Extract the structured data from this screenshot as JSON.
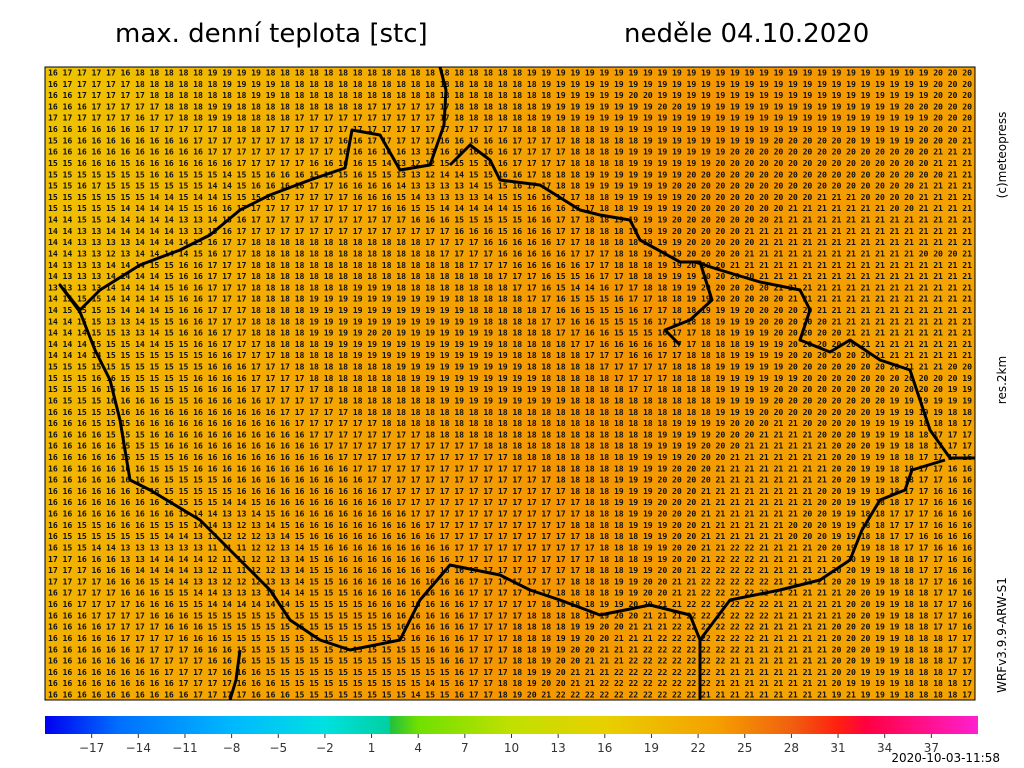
{
  "header": {
    "title": "max. denní teplota [stc]",
    "date": "neděle 04.10.2020"
  },
  "side": {
    "copyright": "(c)meteopress",
    "resolution": "res.2km",
    "model": "WRFv3.9.9-ARW-S1"
  },
  "footer": {
    "timestamp": "2020-10-03-11:58"
  },
  "colorbar": {
    "lim": [
      -20,
      40
    ],
    "ticks": [
      {
        "value": -17,
        "label": "−17"
      },
      {
        "value": -14,
        "label": "−14"
      },
      {
        "value": -11,
        "label": "−11"
      },
      {
        "value": -8,
        "label": "−8"
      },
      {
        "value": -5,
        "label": "−5"
      },
      {
        "value": -2,
        "label": "−2"
      },
      1,
      4,
      7,
      10,
      13,
      16,
      19,
      22,
      25,
      28,
      31,
      34,
      37
    ]
  },
  "grid": {
    "rows": [
      "16 17 17 17 17 16 18 18 18 18 18 19 19 19 19 18 18 18 18 18 18 18 18 18 18 18 18 18 18 18 18 18 18 19 19 19 19 19 19 19 19 19 19 19 19 19 19 19 19 19 19 19 19 19 19 19 19 19 19 19 19 20 20 20",
      "16 17 17 17 17 17 18 18 18 18 18 18 19 19 19 19 18 18 18 18 18 18 18 18 18 18 18 18 18 18 18 18 18 18 19 19 19 19 19 19 19 19 19 19 19 19 19 19 19 19 19 19 19 19 19 19 19 19 19 19 19 20 20 20",
      "16 16 17 17 17 17 17 18 18 18 18 18 18 18 19 19 18 18 18 18 18 18 18 18 18 18 18 18 18 18 18 18 18 18 18 19 19 19 19 19 20 20 19 19 19 19 19 19 19 19 19 19 19 19 19 19 19 19 19 19 19 20 20 20",
      "16 16 16 17 17 17 17 17 18 18 18 19 19 18 18 18 18 18 18 18 18 18 17 17 17 17 17 17 18 18 18 18 18 18 19 19 19 19 19 19 19 19 20 20 19 19 19 19 19 19 19 19 19 19 19 19 19 19 19 20 20 20 20 20",
      "17 17 17 17 17 17 16 17 17 18 18 19 19 18 18 18 18 17 17 17 17 17 17 17 17 17 17 17 18 18 18 18 18 18 19 19 19 19 19 19 19 19 19 19 19 19 19 19 19 19 19 19 19 19 19 19 19 19 19 19 19 20 20 20",
      "16 16 16 16 16 16 16 17 17 17 17 17 18 18 18 17 17 17 17 17 17 17 17 17 17 17 17 17 17 17 17 17 18 18 18 18 18 18 19 19 19 19 19 19 19 19 19 19 19 19 19 19 19 19 19 19 19 19 19 19 20 20 20 21",
      "15 16 16 16 16 16 16 16 16 16 17 17 17 17 17 17 17 18 17 17 16 16 17 17 17 17 17 16 16 16 16 16 17 17 17 17 18 18 18 18 18 19 19 19 19 19 19 19 19 19 20 20 20 20 20 20 19 19 19 19 20 20 20 21",
      "16 16 16 16 16 16 16 16 16 16 16 17 17 17 17 17 17 17 17 17 16 16 16 16 16 13 13 16 16 16 16 16 17 17 17 17 18 18 18 19 19 19 19 19 19 19 19 20 20 20 20 20 20 20 20 20 20 20 20 20 20 21 21 21",
      "15 15 16 16 16 15 16 16 16 16 16 16 16 17 17 17 17 17 16 16 16 16 15 14 13 12 12 15 15 15 16 16 17 17 17 17 18 18 18 18 19 19 19 19 19 19 20 20 20 20 20 20 20 20 20 20 20 20 20 20 20 21 21 21",
      "15 15 15 15 15 15 15 16 16 15 15 15 14 15 15 16 16 16 15 15 15 16 15 15 13 13 12 14 14 15 15 16 16 17 18 18 18 19 19 19 19 19 19 19 20 20 20 20 20 20 20 20 20 20 20 20 20 20 20 20 20 20 21 21",
      "15 15 16 17 15 15 15 15 15 15 15 14 14 15 16 16 16 16 17 17 16 16 16 16 14 13 13 13 13 14 15 15 16 17 17 18 18 19 19 19 19 19 19 20 20 20 20 20 20 20 20 20 20 20 20 20 20 20 20 20 21 21 21 21",
      "15 15 15 15 15 15 15 14 14 15 14 14 15 15 15 16 17 17 17 17 17 16 16 16 15 14 13 13 13 13 14 15 15 16 16 17 17 18 18 19 19 19 19 19 20 20 20 20 20 20 20 20 20 21 21 21 20 20 20 20 21 21 21 21",
      "15 15 15 15 15 14 14 14 14 15 15 16 16 17 17 17 17 17 17 17 17 17 17 16 16 15 15 14 14 14 14 14 15 16 16 16 17 17 18 18 19 19 19 19 20 20 20 20 20 20 20 21 21 21 21 21 21 21 20 20 21 21 21 21",
      "14 14 15 15 14 14 14 14 14 13 13 14 15 16 17 17 17 17 17 17 17 17 17 17 17 16 16 16 15 15 15 15 15 16 16 17 17 18 18 19 19 19 19 20 20 20 20 20 20 20 21 21 21 21 21 21 21 21 21 21 21 21 21 21",
      "14 14 13 13 14 14 14 14 14 13 13 15 16 17 17 17 17 17 17 17 17 17 17 17 17 17 17 17 16 16 16 15 16 16 16 17 17 18 18 18 19 19 19 20 20 20 20 20 21 21 21 21 21 21 21 21 21 21 21 21 21 21 21 21",
      "14 14 13 13 13 13 14 14 14 14 15 16 17 17 18 18 18 18 18 18 18 18 18 18 18 18 17 17 17 17 16 16 16 16 16 17 17 18 18 18 18 19 19 19 20 20 20 20 20 21 21 21 21 21 21 21 21 21 21 21 21 21 21 21",
      "14 14 13 13 12 13 14 14 14 14 15 16 17 17 18 18 18 18 18 18 18 18 18 18 18 18 18 17 17 17 17 16 16 16 16 16 17 17 17 18 18 19 19 19 20 20 20 20 21 21 21 21 21 21 21 21 21 21 21 21 20 20 20 21",
      "14 13 13 13 14 14 14 15 15 16 16 17 17 17 18 18 18 18 18 18 18 18 18 18 18 18 18 18 18 17 17 17 16 16 16 16 16 17 17 18 18 18 19 19 20 20 20 21 21 21 21 21 21 21 21 21 21 21 21 21 21 21 21 21",
      "14 13 13 13 14 14 14 14 15 16 16 17 17 17 18 18 18 18 18 18 18 18 18 18 18 18 18 18 18 18 18 17 17 17 16 15 15 16 17 17 18 18 19 19 19 20 20 20 20 21 21 21 21 21 21 21 21 21 21 21 21 21 21 21",
      "13 13 13 13 14 14 14 14 15 16 16 17 17 17 18 18 18 18 18 18 18 19 19 19 18 18 18 18 18 18 18 18 17 17 16 15 14 14 16 17 17 18 18 19 19 20 20 20 20 20 21 21 21 21 21 21 21 21 21 21 21 21 21 21",
      "14 15 15 15 14 14 14 14 15 16 16 17 17 17 18 18 18 18 19 19 19 19 19 19 19 19 19 19 18 18 18 18 18 17 17 16 15 15 15 16 17 17 18 18 19 19 20 20 20 20 20 21 21 21 21 21 21 21 21 21 21 21 21 21",
      "14 15 15 15 15 14 14 14 15 16 16 17 17 17 18 18 18 18 19 19 19 19 19 19 19 19 19 19 19 18 18 18 18 18 17 16 16 15 15 15 16 17 17 18 18 19 19 19 20 20 20 20 20 21 21 21 21 21 21 21 21 21 21 21",
      "14 14 15 15 13 13 14 15 15 16 16 17 17 17 18 18 18 18 19 19 19 19 19 19 19 19 19 19 19 19 18 18 18 18 17 17 16 16 15 15 15 16 17 17 18 18 19 19 19 20 20 20 20 20 21 21 21 21 21 21 21 21 21 21",
      "14 14 14 15 15 13 13 14 15 16 16 16 17 17 18 18 18 18 19 19 19 19 20 20 19 19 19 19 19 19 19 18 18 18 18 17 17 16 16 15 15 15 16 17 17 18 18 19 19 19 20 20 20 20 20 21 21 21 21 21 21 21 21 21",
      "14 14 14 15 15 15 14 14 15 15 16 16 17 17 17 18 18 18 18 19 19 19 19 19 19 19 19 19 19 19 19 18 18 18 18 18 17 17 16 16 16 16 16 17 17 18 18 18 19 19 19 20 20 20 20 20 21 21 21 21 21 21 21 21",
      "14 14 14 14 15 15 15 15 15 15 15 16 16 17 17 17 18 18 18 18 18 19 19 19 19 19 19 19 19 19 19 19 18 18 18 18 18 17 17 17 16 16 17 17 18 18 18 19 19 19 19 20 20 20 20 20 20 21 21 21 21 21 21 21",
      "15 15 15 15 15 15 15 15 15 15 15 16 16 16 17 17 17 18 18 18 18 18 18 18 19 19 19 19 19 19 19 19 19 18 18 18 18 18 17 17 17 17 17 18 18 18 19 19 19 19 19 20 20 20 20 20 20 20 20 21 21 21 20 20",
      "15 15 15 16 16 15 15 15 15 15 16 16 16 16 17 17 17 17 18 18 18 18 18 18 18 19 19 19 19 19 19 19 19 19 18 18 18 18 18 17 17 17 17 18 18 18 19 19 19 19 19 19 20 20 20 20 20 20 20 20 20 20 20 19",
      "15 15 15 16 16 16 15 15 15 15 16 16 16 16 17 17 17 17 17 18 18 18 18 18 18 18 19 19 19 19 19 19 19 19 19 18 18 18 18 18 17 17 18 18 18 18 19 19 19 19 20 20 20 20 20 20 20 20 20 20 20 20 19 19",
      "16 15 15 15 16 16 16 16 15 15 16 16 16 16 16 17 17 17 17 17 18 18 18 18 18 18 18 19 19 19 19 19 19 19 19 19 18 18 18 18 18 18 18 18 18 18 19 19 19 19 20 20 20 20 20 20 20 20 19 19 19 19 19 19",
      "16 16 15 15 15 16 16 16 16 16 16 16 16 16 16 16 17 17 17 17 17 18 18 18 18 18 18 18 18 18 18 18 18 18 18 18 18 18 18 18 18 18 18 18 18 18 19 19 19 20 20 20 20 20 20 20 20 19 19 19 19 19 18 18",
      "16 16 16 15 15 15 16 16 16 16 16 16 16 16 16 16 16 17 17 17 17 17 17 18 18 18 18 18 18 18 18 18 18 18 18 18 18 18 18 18 18 18 18 19 19 19 19 20 20 20 21 21 20 20 20 20 19 19 19 19 18 18 18 17",
      "16 16 16 16 15 15 15 16 16 16 16 16 16 16 16 16 16 16 17 17 17 17 17 17 17 17 18 18 18 18 18 18 18 18 18 18 18 18 18 18 18 18 19 19 19 19 20 20 20 21 21 21 21 20 20 20 19 19 19 18 18 17 17 17",
      "16 16 16 16 16 15 15 15 16 16 16 16 16 16 16 16 16 16 16 17 17 17 17 17 17 17 17 17 17 17 18 18 18 18 18 18 18 18 18 18 18 19 19 19 19 20 20 20 21 21 21 21 21 21 20 20 20 19 19 18 18 17 17 17",
      "16 16 16 16 16 16 15 15 15 16 16 16 16 16 16 16 16 16 16 16 17 17 17 17 17 17 17 17 17 17 17 17 18 18 18 18 18 18 18 18 19 19 19 19 20 20 20 21 21 21 21 21 21 21 20 20 19 19 18 18 17 17 17 16",
      "16 16 16 16 16 16 16 15 15 15 16 16 16 16 16 16 16 16 16 16 16 17 17 17 17 17 17 17 17 17 17 17 17 17 18 18 18 18 18 18 19 19 19 20 20 20 21 21 21 21 21 21 21 21 20 20 19 19 18 18 17 17 16 16",
      "16 16 16 16 16 16 16 16 15 15 15 15 16 16 16 16 16 16 16 16 16 16 17 17 17 17 17 17 17 17 17 17 17 17 17 18 18 18 18 19 19 19 20 20 20 20 21 21 21 21 21 21 21 21 20 20 19 19 18 18 17 17 16 16",
      "16 16 16 16 16 16 16 16 15 15 15 15 15 16 16 16 16 16 16 16 16 16 16 17 17 17 17 17 17 17 17 17 17 17 17 17 18 18 18 19 19 19 20 20 20 21 21 21 21 21 21 21 21 20 20 19 19 18 18 17 17 16 16 16",
      "16 16 16 16 16 16 16 16 16 15 15 15 14 14 15 16 16 16 16 16 16 16 16 16 17 17 17 17 17 17 17 17 17 17 17 17 17 18 18 19 19 19 20 20 20 21 21 21 21 21 21 21 21 20 20 19 19 18 18 17 17 16 16 16",
      "16 16 16 16 16 16 16 16 16 15 14 14 13 13 14 15 16 16 16 16 16 16 16 16 16 17 17 17 17 17 17 17 17 17 17 17 17 18 18 18 19 19 20 20 20 21 21 21 21 21 21 21 20 20 19 19 18 18 17 17 17 16 16 16",
      "16 16 15 15 16 16 16 15 15 15 14 14 13 12 13 14 15 16 16 16 16 16 16 16 16 16 17 17 17 17 17 17 17 17 17 17 18 18 18 18 19 19 19 20 20 21 21 21 21 21 21 20 20 20 19 19 18 18 17 17 17 16 16 16",
      "16 15 15 15 15 15 15 15 14 14 13 13 12 12 12 13 14 15 16 16 16 16 16 16 16 16 16 17 17 17 17 17 17 17 17 17 17 18 18 18 18 19 19 20 20 21 21 21 21 21 21 20 20 20 19 19 18 18 17 17 16 16 16 16",
      "16 15 15 14 14 13 13 13 13 13 13 11 11 11 12 12 13 14 15 16 16 16 16 16 16 16 16 16 17 17 17 17 17 17 17 17 17 17 18 18 18 19 19 20 20 21 21 22 22 21 21 21 21 20 20 19 19 18 18 17 17 16 16 16",
      "17 17 16 16 16 13 13 14 14 14 14 12 11 11 12 12 13 14 15 16 16 16 16 16 16 16 16 16 17 17 17 17 17 17 17 17 17 17 18 18 18 19 19 20 20 21 22 22 22 21 21 21 21 21 20 20 19 19 18 18 17 17 16 16",
      "17 17 17 16 16 16 14 14 14 14 13 12 11 11 12 12 13 14 15 15 16 16 16 16 16 16 16 16 16 17 17 17 17 17 17 17 17 18 18 18 19 19 20 20 21 22 22 22 22 21 21 21 21 21 20 20 19 19 18 18 17 17 16 16",
      "17 17 17 17 16 16 16 15 14 14 13 13 12 12 12 13 13 14 15 15 16 16 16 16 16 16 16 16 16 17 17 17 17 17 17 17 18 18 18 19 19 20 20 21 21 22 22 22 22 22 21 21 21 21 20 20 19 19 18 18 17 17 16 16",
      "16 17 17 17 17 16 16 16 15 15 14 14 13 13 13 13 14 14 15 15 15 16 16 16 16 16 16 16 16 17 17 17 17 17 17 18 18 18 18 19 19 20 20 21 21 22 22 22 22 22 21 21 21 21 21 20 20 19 19 18 18 17 17 16",
      "16 16 17 17 17 17 16 16 16 15 15 14 14 14 14 14 14 15 15 15 15 15 16 16 16 16 16 16 16 17 17 17 17 17 18 18 18 18 19 19 20 20 21 21 22 22 22 22 22 22 21 21 21 21 21 20 20 19 19 18 18 17 17 16",
      "16 16 16 17 17 17 17 16 16 16 15 15 15 15 15 15 15 15 15 15 15 15 15 16 16 16 16 16 16 17 17 17 17 18 18 18 18 19 19 20 20 21 21 21 22 22 22 22 22 22 21 21 21 21 21 20 20 19 19 18 18 17 17 16",
      "16 16 16 16 17 17 17 17 16 16 16 15 15 15 15 15 15 15 15 15 15 15 15 15 16 16 16 16 16 17 17 17 18 18 18 18 19 19 20 20 21 21 21 22 22 22 22 22 22 21 21 21 21 21 20 20 20 19 19 18 18 17 17 16",
      "16 16 16 16 16 17 17 17 17 16 16 16 15 15 15 15 15 15 15 15 15 15 15 15 15 16 16 16 16 17 17 17 18 18 18 19 19 20 20 21 21 21 22 22 22 22 22 22 22 21 21 21 21 21 20 20 20 19 19 18 18 18 17 17",
      "16 16 16 16 16 16 17 17 17 17 16 16 16 15 15 15 15 15 15 15 15 15 15 15 15 15 16 16 16 17 17 17 18 18 19 19 20 20 21 21 21 22 22 22 22 22 22 22 21 21 21 21 21 21 20 20 20 19 19 18 18 18 17 17",
      "16 16 16 16 16 16 16 17 17 17 17 16 16 16 15 15 15 15 15 15 15 15 15 15 15 15 15 16 16 17 17 17 18 18 19 20 20 21 21 21 22 22 22 22 22 22 22 21 21 21 21 21 21 21 20 20 19 19 19 18 18 18 17 17",
      "16 16 16 16 16 16 16 16 17 17 17 17 16 16 16 15 15 15 15 15 15 15 15 15 15 15 15 15 16 17 17 17 18 19 19 20 21 21 21 22 22 22 22 22 22 22 21 21 21 21 21 21 21 21 20 20 19 19 19 18 18 18 17 17",
      "16 16 16 16 16 16 16 16 16 17 17 17 17 16 16 16 15 15 15 15 15 15 15 15 15 15 14 15 16 17 17 18 18 19 20 20 21 21 22 22 22 22 22 22 22 22 21 21 21 21 21 21 21 21 20 19 19 19 19 18 18 18 18 17",
      "16 16 16 16 16 16 16 16 16 16 17 17 17 17 16 16 16 15 15 15 15 15 15 15 15 14 15 15 16 17 17 18 19 20 21 22 22 22 22 22 22 22 22 22 22 21 21 21 21 21 21 21 21 21 19 21 19 19 19 18 18 18 18 17"
    ]
  }
}
